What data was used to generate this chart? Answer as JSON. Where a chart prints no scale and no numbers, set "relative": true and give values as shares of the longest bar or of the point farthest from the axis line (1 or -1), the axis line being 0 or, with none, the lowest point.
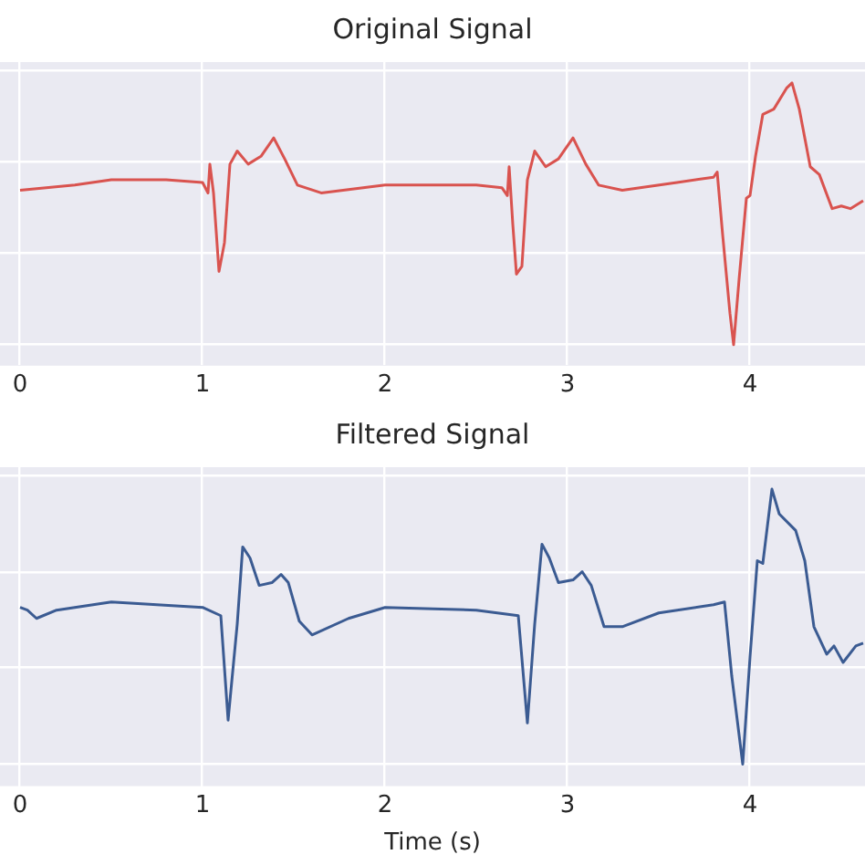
{
  "chart_data": [
    {
      "type": "line",
      "title": "Original Signal",
      "relative": true,
      "grid": true,
      "xlim": [
        -0.11,
        4.63
      ],
      "xticks": [
        0,
        1,
        2,
        3,
        4
      ],
      "series": [
        {
          "color": "#d9534f",
          "x": [
            0,
            0.3,
            0.5,
            0.8,
            1.0,
            1.03,
            1.04,
            1.06,
            1.09,
            1.12,
            1.15,
            1.19,
            1.25,
            1.32,
            1.39,
            1.45,
            1.52,
            1.65,
            2.0,
            2.5,
            2.64,
            2.67,
            2.68,
            2.7,
            2.72,
            2.75,
            2.78,
            2.82,
            2.88,
            2.95,
            3.03,
            3.1,
            3.17,
            3.3,
            3.6,
            3.8,
            3.82,
            3.85,
            3.89,
            3.91,
            3.94,
            3.98,
            4.0,
            4.03,
            4.07,
            4.13,
            4.2,
            4.23,
            4.27,
            4.33,
            4.38,
            4.45,
            4.5,
            4.55,
            4.62
          ],
          "values": [
            0.59,
            0.61,
            0.63,
            0.63,
            0.62,
            0.58,
            0.69,
            0.58,
            0.28,
            0.39,
            0.69,
            0.74,
            0.69,
            0.72,
            0.79,
            0.71,
            0.61,
            0.58,
            0.61,
            0.61,
            0.6,
            0.57,
            0.68,
            0.46,
            0.27,
            0.3,
            0.63,
            0.74,
            0.68,
            0.71,
            0.79,
            0.69,
            0.61,
            0.59,
            0.62,
            0.64,
            0.66,
            0.42,
            0.12,
            0,
            0.25,
            0.56,
            0.57,
            0.72,
            0.88,
            0.9,
            0.98,
            1,
            0.9,
            0.68,
            0.65,
            0.52,
            0.53,
            0.52,
            0.55
          ]
        }
      ]
    },
    {
      "type": "line",
      "title": "Filtered Signal",
      "xlabel": "Time (s)",
      "relative": true,
      "grid": true,
      "xlim": [
        -0.11,
        4.63
      ],
      "xticks": [
        0,
        1,
        2,
        3,
        4
      ],
      "series": [
        {
          "color": "#3b5b92",
          "x": [
            0,
            0.04,
            0.09,
            0.2,
            0.5,
            1.0,
            1.1,
            1.14,
            1.19,
            1.22,
            1.26,
            1.31,
            1.38,
            1.43,
            1.47,
            1.53,
            1.6,
            1.8,
            2.0,
            2.5,
            2.73,
            2.78,
            2.82,
            2.86,
            2.9,
            2.95,
            3.03,
            3.08,
            3.13,
            3.2,
            3.3,
            3.5,
            3.8,
            3.86,
            3.9,
            3.96,
            4.0,
            4.04,
            4.07,
            4.12,
            4.16,
            4.25,
            4.3,
            4.35,
            4.42,
            4.46,
            4.51,
            4.58,
            4.62
          ],
          "values": [
            0.57,
            0.56,
            0.53,
            0.56,
            0.59,
            0.57,
            0.54,
            0.16,
            0.51,
            0.79,
            0.75,
            0.65,
            0.66,
            0.69,
            0.66,
            0.52,
            0.47,
            0.53,
            0.57,
            0.56,
            0.54,
            0.15,
            0.51,
            0.8,
            0.75,
            0.66,
            0.67,
            0.7,
            0.65,
            0.5,
            0.5,
            0.55,
            0.58,
            0.59,
            0.32,
            0,
            0.39,
            0.74,
            0.73,
            1,
            0.91,
            0.85,
            0.74,
            0.5,
            0.4,
            0.43,
            0.37,
            0.43,
            0.44
          ]
        }
      ]
    }
  ]
}
